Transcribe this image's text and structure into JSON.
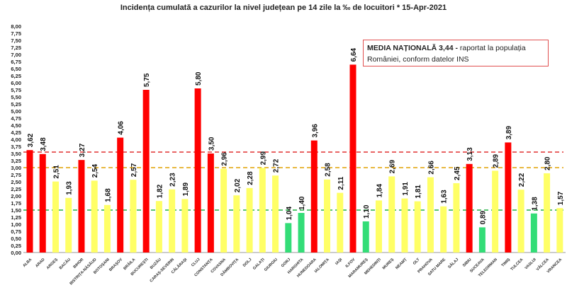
{
  "chart_data": {
    "type": "bar",
    "title": "Incidența cumulată a cazurilor la nivel județean pe 14 zile  la ‰ de locuitori  *  15-Apr-2021",
    "xlabel": "",
    "ylabel": "",
    "ylim": [
      0,
      8
    ],
    "ytick_step": 0.25,
    "categories": [
      "ALBA",
      "ARAD",
      "ARGEȘ",
      "BACĂU",
      "BIHOR",
      "BISTRIȚA-NĂSĂUD",
      "BOTOȘANI",
      "BRAȘOV",
      "BRĂILA",
      "BUCUREȘTI",
      "BUZĂU",
      "CARAȘ-SEVERIN",
      "CĂLĂRAȘI",
      "CLUJ",
      "CONSTANȚA",
      "COVASNA",
      "DÂMBOVIȚA",
      "DOLJ",
      "GALAȚI",
      "GIURGIU",
      "GORJ",
      "HARGHITA",
      "HUNEDOARA",
      "IALOMIȚA",
      "IAȘI",
      "ILFOV",
      "MARAMUREȘ",
      "MEHEDINȚI",
      "MUREȘ",
      "NEAMȚ",
      "OLT",
      "PRAHOVA",
      "SATU MARE",
      "SĂLAJ",
      "SIBIU",
      "SUCEAVA",
      "TELEORMAN",
      "TIMIȘ",
      "TULCEA",
      "VASLUI",
      "VÂLCEA",
      "VRANCEA"
    ],
    "values": [
      3.62,
      3.48,
      2.51,
      1.93,
      3.27,
      2.54,
      1.68,
      4.06,
      2.57,
      5.75,
      1.82,
      2.23,
      1.89,
      5.8,
      3.5,
      2.96,
      2.02,
      2.28,
      2.99,
      2.72,
      1.04,
      1.4,
      3.96,
      2.58,
      2.11,
      6.64,
      1.1,
      1.84,
      2.69,
      1.91,
      1.81,
      2.66,
      1.63,
      2.45,
      3.13,
      0.89,
      2.89,
      3.89,
      2.22,
      1.38,
      2.8,
      1.57
    ],
    "thresholds": [
      {
        "value": 3.55,
        "color": "#e03030"
      },
      {
        "value": 3.0,
        "color": "#e0a000"
      },
      {
        "value": 1.5,
        "color": "#20b040"
      }
    ],
    "colors": {
      "high": "#ff0000",
      "mid": "#ffff66",
      "low": "#33dd77"
    },
    "annotation": {
      "bold": "MEDIA NAȚIONALĂ 3,44 -",
      "text": " raportat la populația României, conform datelor INS"
    }
  }
}
